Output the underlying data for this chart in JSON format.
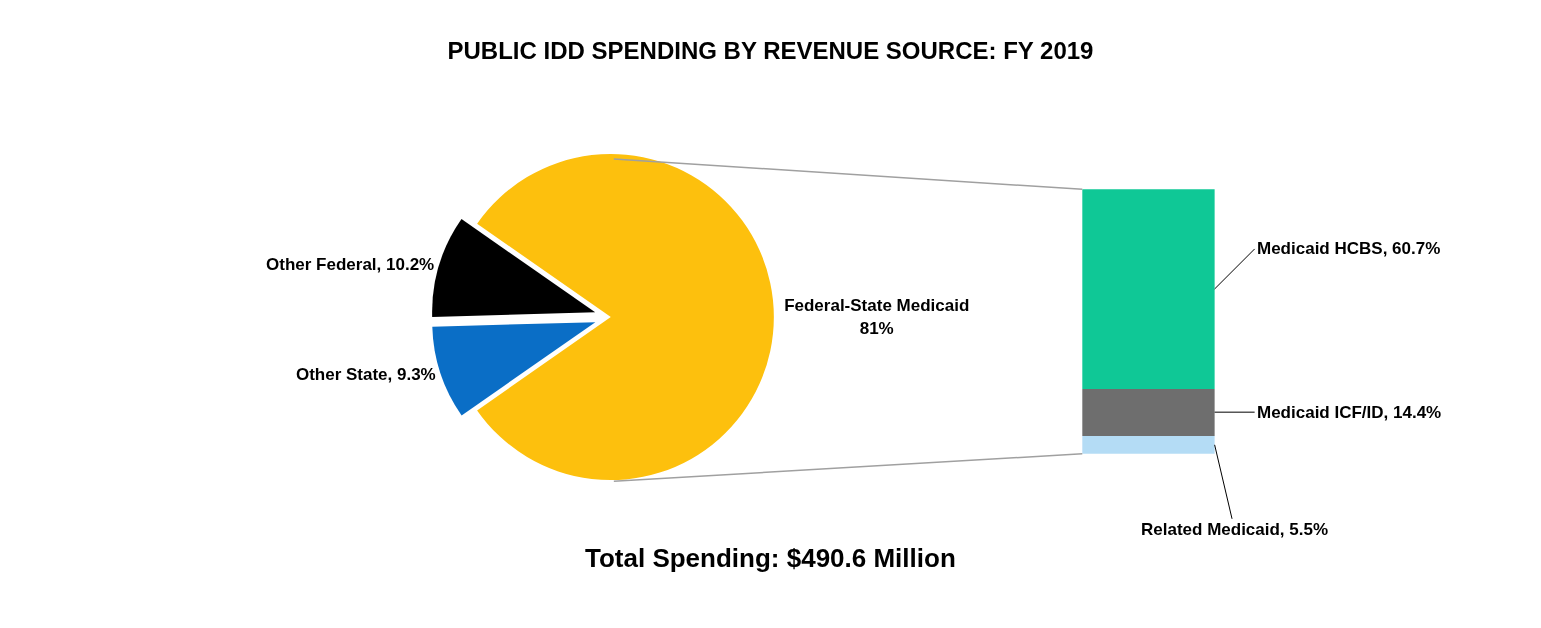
{
  "chart_data": [
    {
      "type": "pie",
      "title": "PUBLIC IDD SPENDING BY REVENUE SOURCE: FY 2019",
      "categories": [
        "Federal-State Medicaid",
        "Other State",
        "Other Federal"
      ],
      "values": [
        81,
        9.3,
        10.2
      ],
      "colors": [
        "#fdc00d",
        "#0a6ec6",
        "#000000"
      ],
      "value_labels": [
        "81%",
        "9.3%",
        "10.2%"
      ],
      "annotations": [
        "Total Spending: $490.6 Million"
      ]
    },
    {
      "type": "bar",
      "stacked": true,
      "categories": [
        null
      ],
      "series": [
        {
          "color": "#b4dcf5",
          "values": [
            5.5
          ],
          "value_labels": [
            "Related Medicaid, 5.5%"
          ]
        },
        {
          "color": "#6e6e6e",
          "values": [
            14.4
          ],
          "value_labels": [
            "Medicaid ICF/ID, 14.4%"
          ]
        },
        {
          "color": "#0fc896",
          "values": [
            60.7
          ],
          "value_labels": [
            "Medicaid HCBS, 60.7%"
          ]
        }
      ]
    }
  ]
}
